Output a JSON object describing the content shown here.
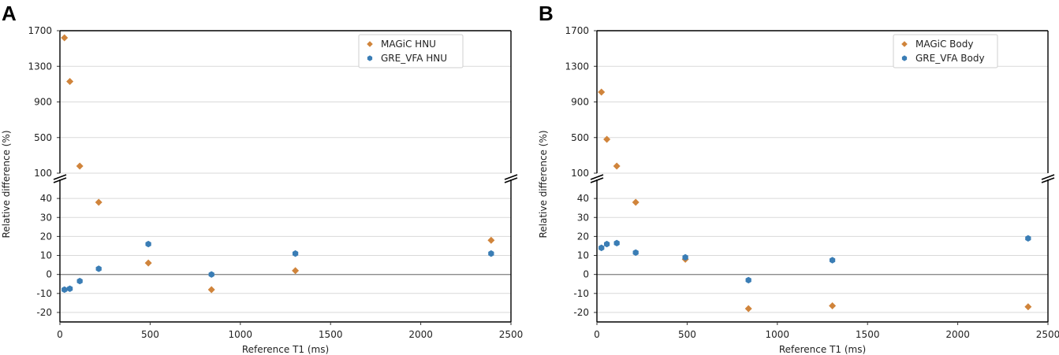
{
  "chart_data": [
    {
      "panel_label": "A",
      "type": "scatter",
      "xlabel": "Reference T1 (ms)",
      "ylabel": "Relative difference (%)",
      "xlim": [
        0,
        2500
      ],
      "x_ticks": [
        0,
        500,
        1000,
        1500,
        2000,
        2500
      ],
      "y_axis_break": true,
      "ylim_lower": [
        -25,
        50
      ],
      "y_ticks_lower": [
        -20,
        -10,
        0,
        10,
        20,
        30,
        40
      ],
      "ylim_upper": [
        100,
        1700
      ],
      "y_ticks_upper": [
        100,
        500,
        900,
        1300,
        1700
      ],
      "grid": "horizontal",
      "zero_line": true,
      "legend_position": "top-right",
      "series": [
        {
          "name": "MAGiC HNU",
          "color": "#D0843B",
          "marker": "diamond",
          "x": [
            25,
            55,
            110,
            215,
            490,
            840,
            1305,
            2390
          ],
          "y": [
            1620,
            1130,
            180,
            38,
            6,
            -8,
            2,
            18
          ]
        },
        {
          "name": "GRE_VFA HNU",
          "color": "#3A7DB5",
          "marker": "hexagon",
          "x": [
            25,
            55,
            110,
            215,
            490,
            840,
            1305,
            2390
          ],
          "y": [
            -8,
            -7.5,
            -3.5,
            3,
            16,
            0,
            11,
            11
          ]
        }
      ]
    },
    {
      "panel_label": "B",
      "type": "scatter",
      "xlabel": "Reference T1 (ms)",
      "ylabel": "Relative difference (%)",
      "xlim": [
        0,
        2500
      ],
      "x_ticks": [
        0,
        500,
        1000,
        1500,
        2000,
        2500
      ],
      "y_axis_break": true,
      "ylim_lower": [
        -25,
        50
      ],
      "y_ticks_lower": [
        -20,
        -10,
        0,
        10,
        20,
        30,
        40
      ],
      "ylim_upper": [
        100,
        1700
      ],
      "y_ticks_upper": [
        100,
        500,
        900,
        1300,
        1700
      ],
      "grid": "horizontal",
      "zero_line": true,
      "legend_position": "top-right",
      "series": [
        {
          "name": "MAGiC Body",
          "color": "#D0843B",
          "marker": "diamond",
          "x": [
            25,
            55,
            110,
            215,
            490,
            840,
            1305,
            2390
          ],
          "y": [
            1010,
            480,
            180,
            38,
            8,
            -18,
            -16.5,
            -17
          ]
        },
        {
          "name": "GRE_VFA Body",
          "color": "#3A7DB5",
          "marker": "hexagon",
          "x": [
            25,
            55,
            110,
            215,
            490,
            840,
            1305,
            2390
          ],
          "y": [
            14,
            16,
            16.5,
            11.5,
            9,
            -3,
            7.5,
            19
          ]
        }
      ]
    }
  ]
}
